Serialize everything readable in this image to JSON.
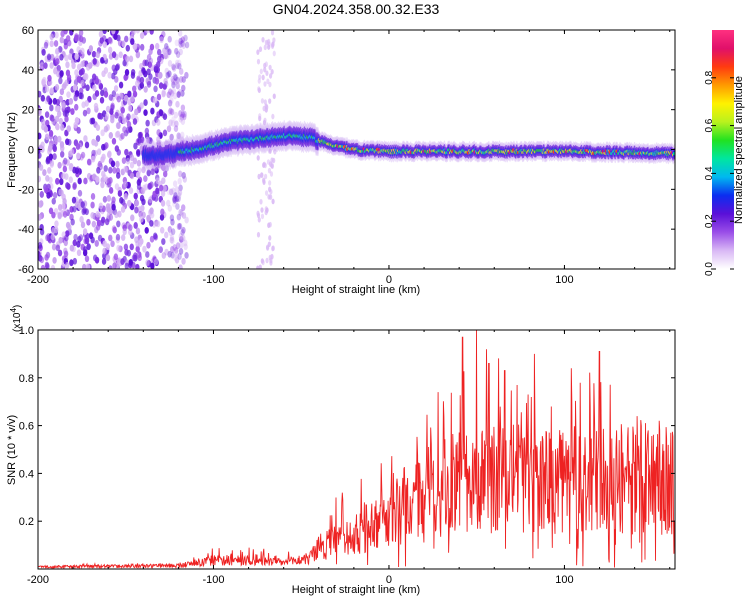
{
  "title": "GN04.2024.358.00.32.E33",
  "chart_data": [
    {
      "type": "heatmap",
      "xlabel": "Height of straight line (km)",
      "ylabel": "Frequency (Hz)",
      "xlim": [
        -200,
        163
      ],
      "ylim": [
        -60,
        60
      ],
      "xticks": [
        -200,
        -100,
        0,
        100
      ],
      "yticks": [
        -60,
        -40,
        -20,
        0,
        20,
        40,
        60
      ],
      "colorbar": {
        "label": "Normalized spectral amplitude",
        "range": [
          0.0,
          1.0
        ],
        "ticks": [
          "0.0",
          "0.2",
          "0.4",
          "0.6",
          "0.8"
        ],
        "colors": [
          "#ffffff",
          "#d9b8f5",
          "#9a4ee8",
          "#5a10d8",
          "#0b2df0",
          "#00b8f0",
          "#00e6a0",
          "#21e221",
          "#b9f21e",
          "#fff200",
          "#ff9a00",
          "#ff3b10",
          "#e0106a",
          "#ff3080"
        ]
      },
      "features": {
        "noise_region_x": [
          -200,
          -115
        ],
        "faint_streak_x": [
          -75,
          -65
        ],
        "signal_track": [
          {
            "x": -130,
            "y": -3
          },
          {
            "x": -110,
            "y": 0
          },
          {
            "x": -90,
            "y": 4
          },
          {
            "x": -70,
            "y": 6
          },
          {
            "x": -55,
            "y": 7
          },
          {
            "x": -45,
            "y": 6
          },
          {
            "x": -35,
            "y": 3
          },
          {
            "x": -20,
            "y": 0
          },
          {
            "x": 0,
            "y": -1
          },
          {
            "x": 50,
            "y": -1
          },
          {
            "x": 100,
            "y": -1
          },
          {
            "x": 163,
            "y": -2
          }
        ]
      }
    },
    {
      "type": "line",
      "xlabel": "Height of straight line (km)",
      "ylabel": "SNR (10 * v/v)",
      "y_multiplier": "(x10^4)",
      "xlim": [
        -200,
        163
      ],
      "ylim": [
        0,
        1.0
      ],
      "xticks": [
        -200,
        -100,
        0,
        100
      ],
      "yticks": [
        0.2,
        0.4,
        0.6,
        0.8,
        1.0
      ],
      "color": "#ee2222",
      "envelope": [
        {
          "x": -200,
          "mean": 0.01,
          "peak": 0.02
        },
        {
          "x": -120,
          "mean": 0.015,
          "peak": 0.025
        },
        {
          "x": -100,
          "mean": 0.04,
          "peak": 0.09
        },
        {
          "x": -80,
          "mean": 0.04,
          "peak": 0.1
        },
        {
          "x": -60,
          "mean": 0.03,
          "peak": 0.08
        },
        {
          "x": -45,
          "mean": 0.05,
          "peak": 0.07
        },
        {
          "x": -40,
          "mean": 0.1,
          "peak": 0.3
        },
        {
          "x": -20,
          "mean": 0.15,
          "peak": 0.33
        },
        {
          "x": -10,
          "mean": 0.2,
          "peak": 0.5
        },
        {
          "x": 0,
          "mean": 0.25,
          "peak": 0.5
        },
        {
          "x": 20,
          "mean": 0.35,
          "peak": 0.65
        },
        {
          "x": 40,
          "mean": 0.4,
          "peak": 0.85
        },
        {
          "x": 50,
          "mean": 0.42,
          "peak": 1.0
        },
        {
          "x": 70,
          "mean": 0.42,
          "peak": 0.85
        },
        {
          "x": 100,
          "mean": 0.4,
          "peak": 0.7
        },
        {
          "x": 120,
          "mean": 0.4,
          "peak": 0.9
        },
        {
          "x": 140,
          "mean": 0.4,
          "peak": 0.65
        },
        {
          "x": 163,
          "mean": 0.4,
          "peak": 0.6
        }
      ],
      "peaks": [
        {
          "x": 42,
          "y": 0.97
        },
        {
          "x": 50,
          "y": 1.0
        },
        {
          "x": 57,
          "y": 0.86
        },
        {
          "x": 66,
          "y": 0.83
        },
        {
          "x": 73,
          "y": 0.77
        },
        {
          "x": 83,
          "y": 0.9
        },
        {
          "x": 104,
          "y": 0.84
        },
        {
          "x": 120,
          "y": 0.91
        },
        {
          "x": 28,
          "y": 0.74
        },
        {
          "x": 154,
          "y": 0.62
        }
      ]
    }
  ]
}
